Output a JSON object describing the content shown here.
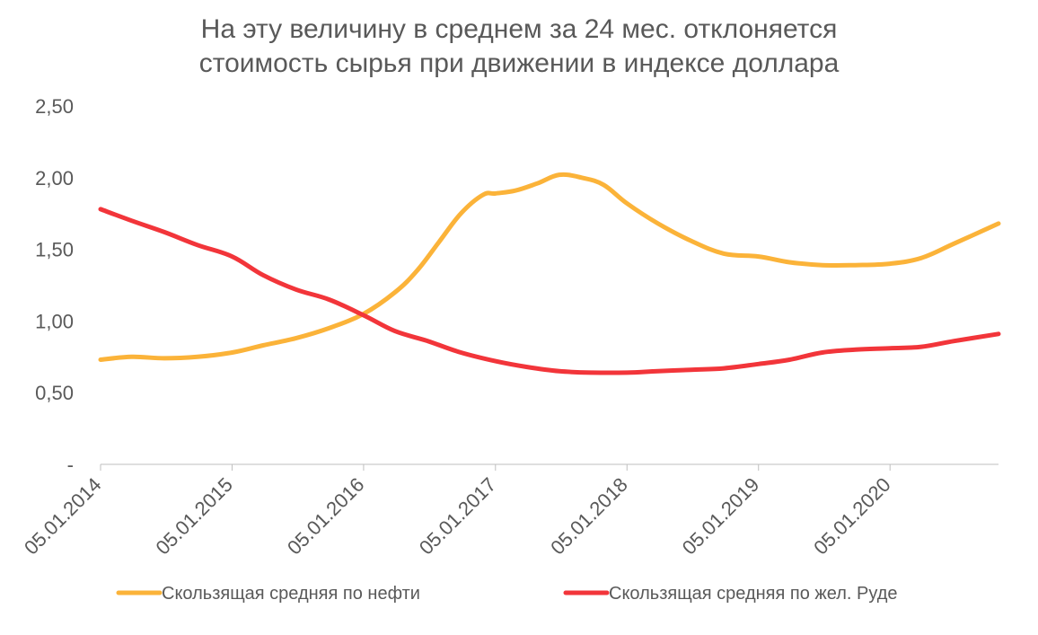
{
  "chart_data": {
    "type": "line",
    "title_lines": [
      "На эту величину в среднем за 24 мес. отклоняется",
      "стоимость сырья при движении в индексе доллара"
    ],
    "xlabel": "",
    "ylabel": "",
    "x_ticks": [
      "05.01.2014",
      "05.01.2015",
      "05.01.2016",
      "05.01.2017",
      "05.01.2018",
      "05.01.2019",
      "05.01.2020"
    ],
    "y_ticks": [
      "-",
      "0,50",
      "1,00",
      "1,50",
      "2,00",
      "2,50"
    ],
    "ylim": [
      0,
      2.5
    ],
    "xlim": [
      "2014-01-05",
      "2020-11-01"
    ],
    "legend_position": "bottom",
    "grid": false,
    "series": [
      {
        "name": "Скользящая средняя по нефти",
        "color": "#FBB339",
        "x": [
          "2014-01-05",
          "2014-04-01",
          "2014-07-01",
          "2014-10-01",
          "2015-01-05",
          "2015-04-01",
          "2015-07-01",
          "2015-10-01",
          "2016-01-05",
          "2016-04-01",
          "2016-06-01",
          "2016-08-01",
          "2016-10-01",
          "2016-12-01",
          "2017-01-05",
          "2017-03-01",
          "2017-05-01",
          "2017-07-01",
          "2017-09-01",
          "2017-11-01",
          "2018-01-05",
          "2018-04-01",
          "2018-07-01",
          "2018-10-01",
          "2019-01-05",
          "2019-04-01",
          "2019-07-01",
          "2019-10-01",
          "2020-01-05",
          "2020-04-01",
          "2020-07-01",
          "2020-11-01"
        ],
        "values": [
          0.73,
          0.75,
          0.74,
          0.75,
          0.78,
          0.83,
          0.88,
          0.95,
          1.05,
          1.2,
          1.35,
          1.55,
          1.75,
          1.88,
          1.89,
          1.91,
          1.96,
          2.02,
          2.0,
          1.95,
          1.82,
          1.68,
          1.56,
          1.47,
          1.45,
          1.41,
          1.39,
          1.39,
          1.4,
          1.44,
          1.54,
          1.68
        ]
      },
      {
        "name": "Скользящая средняя по жел. Руде",
        "color": "#F2353A",
        "x": [
          "2014-01-05",
          "2014-04-01",
          "2014-07-01",
          "2014-10-01",
          "2015-01-05",
          "2015-04-01",
          "2015-07-01",
          "2015-10-01",
          "2016-01-05",
          "2016-04-01",
          "2016-07-01",
          "2016-10-01",
          "2017-01-05",
          "2017-04-01",
          "2017-07-01",
          "2017-10-01",
          "2018-01-05",
          "2018-04-01",
          "2018-07-01",
          "2018-10-01",
          "2019-01-05",
          "2019-04-01",
          "2019-07-01",
          "2019-10-01",
          "2020-01-05",
          "2020-04-01",
          "2020-07-01",
          "2020-11-01"
        ],
        "values": [
          1.78,
          1.7,
          1.62,
          1.53,
          1.45,
          1.32,
          1.22,
          1.15,
          1.04,
          0.93,
          0.86,
          0.78,
          0.72,
          0.68,
          0.65,
          0.64,
          0.64,
          0.65,
          0.66,
          0.67,
          0.7,
          0.73,
          0.78,
          0.8,
          0.81,
          0.82,
          0.86,
          0.91
        ]
      }
    ]
  }
}
